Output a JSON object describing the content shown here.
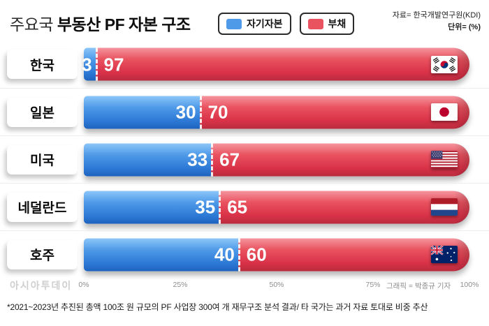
{
  "header": {
    "title_regular": "주요국",
    "title_bold": " 부동산 PF 자본 구조",
    "legend": [
      {
        "label": "자기자본",
        "color": "#4f9ae8"
      },
      {
        "label": "부채",
        "color": "#e9525f"
      }
    ],
    "source": "자료= 한국개발연구원(KDI)",
    "unit": "단위= (%)"
  },
  "chart_data": {
    "type": "bar",
    "orientation": "horizontal",
    "stacked": true,
    "title": "주요국 부동산 PF 자본 구조",
    "unit": "%",
    "series_names": [
      "자기자본",
      "부채"
    ],
    "categories": [
      "한국",
      "일본",
      "미국",
      "네덜란드",
      "호주"
    ],
    "rows": [
      {
        "country": "한국",
        "equity": 3,
        "debt": 97,
        "flag": "south-korea"
      },
      {
        "country": "일본",
        "equity": 30,
        "debt": 70,
        "flag": "japan"
      },
      {
        "country": "미국",
        "equity": 33,
        "debt": 67,
        "flag": "usa"
      },
      {
        "country": "네덜란드",
        "equity": 35,
        "debt": 65,
        "flag": "netherlands"
      },
      {
        "country": "호주",
        "equity": 40,
        "debt": 60,
        "flag": "australia"
      }
    ],
    "x_ticks": [
      "0%",
      "25%",
      "50%",
      "75%",
      "100%"
    ],
    "xlim": [
      0,
      100
    ],
    "legend_position": "top",
    "colors": {
      "equity_blue": "#4f9ae8",
      "debt_red": "#e9525f"
    }
  },
  "footer": {
    "watermark": "아시아투데이",
    "credit": "그래픽 = 박종규 기자",
    "note": "*2021~2023년 추진된 총액 100조 원 규모의 PF 사업장 300여 개 재무구조 분석 결과/ 타 국가는 과거 자료 토대로 비중 추산"
  }
}
